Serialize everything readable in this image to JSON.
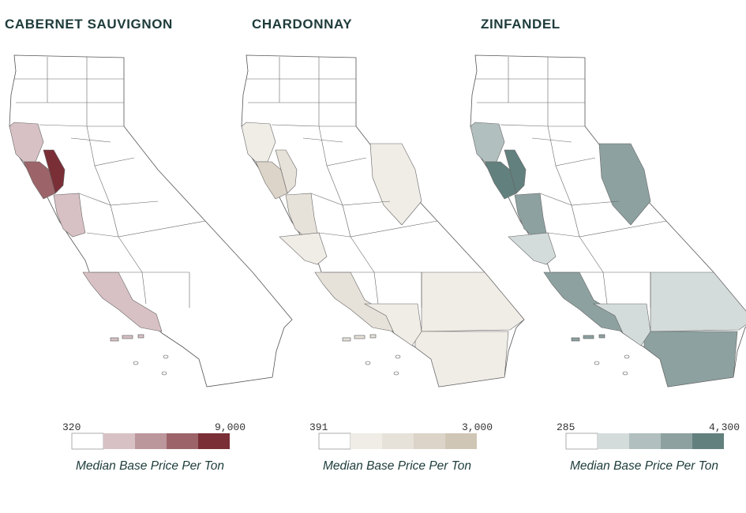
{
  "panels": [
    {
      "title": "CABERNET SAUVIGNON",
      "legend": {
        "min_label": "320",
        "max_label": "9,000",
        "caption": "Median Base Price Per Ton",
        "colors": [
          "#ffffff",
          "#d8c1c4",
          "#bb969b",
          "#9c6469",
          "#7a2f37"
        ]
      }
    },
    {
      "title": "CHARDONNAY",
      "legend": {
        "min_label": "391",
        "max_label": "3,000",
        "caption": "Median Base Price Per Ton",
        "colors": [
          "#ffffff",
          "#f0ece6",
          "#e6e1d9",
          "#dcd4c8",
          "#cfc6b6"
        ]
      }
    },
    {
      "title": "ZINFANDEL",
      "legend": {
        "min_label": "285",
        "max_label": "4,300",
        "caption": "Median Base Price Per Ton",
        "colors": [
          "#ffffff",
          "#d4dcdb",
          "#b1bfbe",
          "#8da1a0",
          "#62807e"
        ]
      }
    }
  ]
}
